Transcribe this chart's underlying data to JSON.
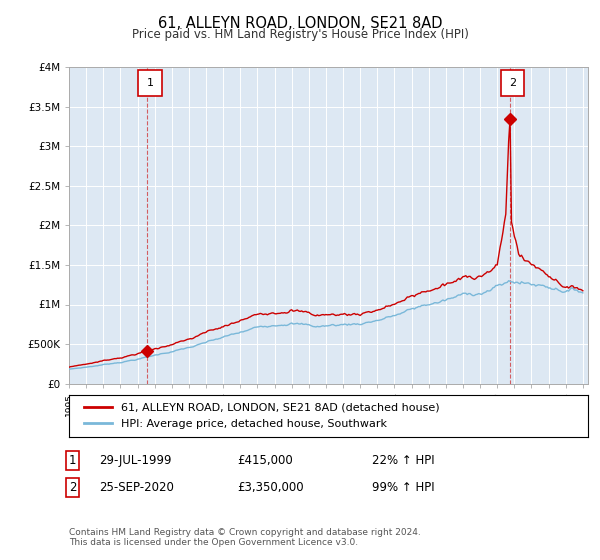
{
  "title": "61, ALLEYN ROAD, LONDON, SE21 8AD",
  "subtitle": "Price paid vs. HM Land Registry's House Price Index (HPI)",
  "ylim": [
    0,
    4000000
  ],
  "yticks": [
    0,
    500000,
    1000000,
    1500000,
    2000000,
    2500000,
    3000000,
    3500000,
    4000000
  ],
  "ytick_labels": [
    "£0",
    "£500K",
    "£1M",
    "£1.5M",
    "£2M",
    "£2.5M",
    "£3M",
    "£3.5M",
    "£4M"
  ],
  "sale1_price": 415000,
  "sale1_label": "29-JUL-1999",
  "sale1_price_label": "£415,000",
  "sale1_hpi_label": "22% ↑ HPI",
  "sale1_x": 1999.58,
  "sale2_price": 3350000,
  "sale2_label": "25-SEP-2020",
  "sale2_price_label": "£3,350,000",
  "sale2_hpi_label": "99% ↑ HPI",
  "sale2_x": 2020.74,
  "hpi_color": "#7ab8d9",
  "sale_color": "#cc0000",
  "plot_bg": "#dde8f3",
  "grid_color": "#ffffff",
  "legend_sale_label": "61, ALLEYN ROAD, LONDON, SE21 8AD (detached house)",
  "legend_hpi_label": "HPI: Average price, detached house, Southwark",
  "footnote": "Contains HM Land Registry data © Crown copyright and database right 2024.\nThis data is licensed under the Open Government Licence v3.0."
}
